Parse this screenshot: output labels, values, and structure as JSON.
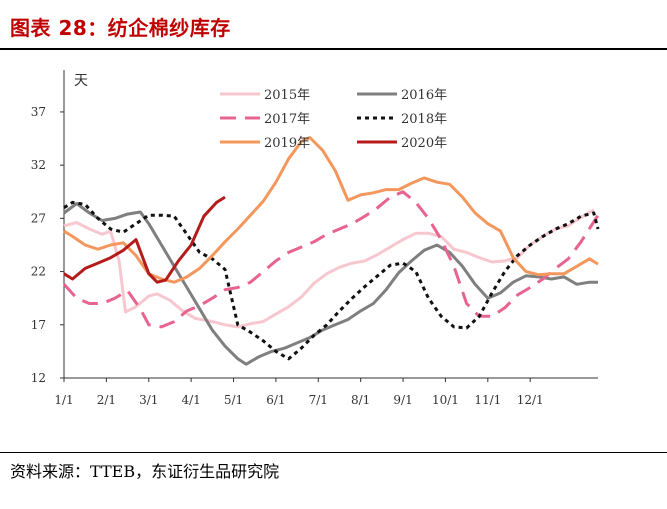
{
  "title": "图表 28：纺企棉纱库存",
  "source": "资料来源：TTEB，东证衍生品研究院",
  "chart_data": {
    "type": "line",
    "ylabel": "天",
    "ylim": [
      12,
      40
    ],
    "yticks": [
      12,
      17,
      22,
      27,
      32,
      37
    ],
    "xlim": [
      0,
      12.6
    ],
    "xtick_positions": [
      0,
      1,
      2,
      3,
      4,
      5,
      6,
      7,
      8,
      9,
      10,
      11
    ],
    "xtick_labels": [
      "1/1",
      "2/1",
      "3/1",
      "4/1",
      "5/1",
      "6/1",
      "7/1",
      "8/1",
      "9/1",
      "10/1",
      "11/1",
      "12/1"
    ],
    "legend_position": "top",
    "series": [
      {
        "name": "2015年",
        "color": "#f7c7cf",
        "dash": "solid",
        "points": [
          [
            0,
            26.3
          ],
          [
            0.3,
            26.6
          ],
          [
            0.6,
            26
          ],
          [
            0.9,
            25.5
          ],
          [
            1.1,
            25.8
          ],
          [
            1.3,
            23
          ],
          [
            1.45,
            18.2
          ],
          [
            1.7,
            18.7
          ],
          [
            2,
            19.7
          ],
          [
            2.2,
            19.9
          ],
          [
            2.5,
            19.3
          ],
          [
            2.8,
            18.3
          ],
          [
            3.1,
            17.6
          ],
          [
            3.5,
            17.3
          ],
          [
            3.8,
            17
          ],
          [
            4.1,
            16.8
          ],
          [
            4.4,
            17.1
          ],
          [
            4.7,
            17.3
          ],
          [
            5,
            18
          ],
          [
            5.3,
            18.7
          ],
          [
            5.6,
            19.6
          ],
          [
            5.9,
            20.9
          ],
          [
            6.2,
            21.8
          ],
          [
            6.5,
            22.4
          ],
          [
            6.8,
            22.8
          ],
          [
            7.1,
            23
          ],
          [
            7.4,
            23.6
          ],
          [
            7.7,
            24.3
          ],
          [
            8,
            25
          ],
          [
            8.3,
            25.6
          ],
          [
            8.6,
            25.6
          ],
          [
            8.9,
            25.3
          ],
          [
            9.2,
            24.1
          ],
          [
            9.5,
            23.8
          ],
          [
            9.8,
            23.3
          ],
          [
            10.1,
            22.9
          ],
          [
            10.4,
            23
          ],
          [
            10.7,
            23.3
          ],
          [
            11,
            24.5
          ],
          [
            11.3,
            25.3
          ],
          [
            11.6,
            26
          ],
          [
            11.9,
            26.3
          ],
          [
            12.2,
            27.1
          ],
          [
            12.5,
            27.8
          ]
        ]
      },
      {
        "name": "2016年",
        "color": "#7f7f7f",
        "dash": "solid",
        "points": [
          [
            0,
            27.5
          ],
          [
            0.3,
            28.4
          ],
          [
            0.6,
            27.5
          ],
          [
            0.9,
            26.8
          ],
          [
            1.2,
            27
          ],
          [
            1.5,
            27.4
          ],
          [
            1.8,
            27.6
          ],
          [
            2,
            26.5
          ],
          [
            2.3,
            24.5
          ],
          [
            2.6,
            22.5
          ],
          [
            2.9,
            20.5
          ],
          [
            3.2,
            18.5
          ],
          [
            3.5,
            16.5
          ],
          [
            3.8,
            15
          ],
          [
            4.1,
            13.8
          ],
          [
            4.3,
            13.3
          ],
          [
            4.6,
            14
          ],
          [
            4.9,
            14.5
          ],
          [
            5.2,
            14.8
          ],
          [
            5.5,
            15.3
          ],
          [
            5.8,
            15.8
          ],
          [
            6.1,
            16.5
          ],
          [
            6.4,
            17
          ],
          [
            6.7,
            17.5
          ],
          [
            7,
            18.3
          ],
          [
            7.3,
            19
          ],
          [
            7.6,
            20.3
          ],
          [
            7.9,
            21.9
          ],
          [
            8.2,
            23
          ],
          [
            8.5,
            24
          ],
          [
            8.8,
            24.5
          ],
          [
            9.1,
            23.8
          ],
          [
            9.4,
            22.5
          ],
          [
            9.7,
            20.8
          ],
          [
            10,
            19.5
          ],
          [
            10.3,
            20
          ],
          [
            10.6,
            21
          ],
          [
            10.9,
            21.6
          ],
          [
            11.2,
            21.5
          ],
          [
            11.5,
            21.3
          ],
          [
            11.8,
            21.5
          ],
          [
            12.1,
            20.8
          ],
          [
            12.4,
            21
          ],
          [
            12.6,
            21
          ]
        ]
      },
      {
        "name": "2017年",
        "color": "#e8638f",
        "dash": "long",
        "points": [
          [
            0,
            20.8
          ],
          [
            0.3,
            19.5
          ],
          [
            0.6,
            19
          ],
          [
            0.9,
            19
          ],
          [
            1.2,
            19.5
          ],
          [
            1.5,
            20.2
          ],
          [
            1.8,
            18.5
          ],
          [
            2,
            17
          ],
          [
            2.3,
            16.8
          ],
          [
            2.6,
            17.3
          ],
          [
            2.9,
            18.3
          ],
          [
            3.2,
            18.8
          ],
          [
            3.5,
            19.5
          ],
          [
            3.8,
            20.3
          ],
          [
            4.1,
            20.5
          ],
          [
            4.4,
            21
          ],
          [
            4.7,
            22
          ],
          [
            5,
            23
          ],
          [
            5.3,
            23.8
          ],
          [
            5.6,
            24.3
          ],
          [
            5.9,
            24.8
          ],
          [
            6.2,
            25.5
          ],
          [
            6.5,
            26
          ],
          [
            6.8,
            26.5
          ],
          [
            7.1,
            27.2
          ],
          [
            7.4,
            28
          ],
          [
            7.7,
            29
          ],
          [
            8,
            29.5
          ],
          [
            8.3,
            28.5
          ],
          [
            8.6,
            27
          ],
          [
            8.9,
            25
          ],
          [
            9.2,
            22.5
          ],
          [
            9.5,
            19
          ],
          [
            9.8,
            17.8
          ],
          [
            10.1,
            17.8
          ],
          [
            10.4,
            18.6
          ],
          [
            10.7,
            19.8
          ],
          [
            11,
            20.5
          ],
          [
            11.3,
            21.3
          ],
          [
            11.6,
            22.3
          ],
          [
            11.9,
            23.2
          ],
          [
            12.2,
            24.8
          ],
          [
            12.6,
            27.3
          ]
        ]
      },
      {
        "name": "2018年",
        "color": "#111111",
        "dash": "dot",
        "points": [
          [
            0,
            28
          ],
          [
            0.2,
            28.5
          ],
          [
            0.5,
            28.3
          ],
          [
            0.8,
            27
          ],
          [
            1.1,
            26
          ],
          [
            1.4,
            25.7
          ],
          [
            1.7,
            26.5
          ],
          [
            2,
            27.3
          ],
          [
            2.3,
            27.3
          ],
          [
            2.6,
            27.2
          ],
          [
            2.9,
            25.5
          ],
          [
            3.2,
            23.8
          ],
          [
            3.5,
            23.2
          ],
          [
            3.8,
            22.2
          ],
          [
            4.1,
            17
          ],
          [
            4.4,
            16.3
          ],
          [
            4.7,
            15.5
          ],
          [
            5,
            14.5
          ],
          [
            5.3,
            13.8
          ],
          [
            5.6,
            14.8
          ],
          [
            5.9,
            16
          ],
          [
            6.2,
            17
          ],
          [
            6.5,
            18.3
          ],
          [
            6.8,
            19.5
          ],
          [
            7.1,
            20.6
          ],
          [
            7.4,
            21.6
          ],
          [
            7.7,
            22.6
          ],
          [
            8,
            22.8
          ],
          [
            8.3,
            22
          ],
          [
            8.6,
            19.5
          ],
          [
            8.9,
            17.8
          ],
          [
            9.2,
            16.8
          ],
          [
            9.5,
            16.7
          ],
          [
            9.8,
            17.8
          ],
          [
            10.1,
            20
          ],
          [
            10.4,
            22
          ],
          [
            10.7,
            23.5
          ],
          [
            11,
            24.5
          ],
          [
            11.3,
            25.3
          ],
          [
            11.6,
            26
          ],
          [
            11.9,
            26.5
          ],
          [
            12.2,
            27.2
          ],
          [
            12.5,
            27.5
          ],
          [
            12.6,
            26
          ]
        ]
      },
      {
        "name": "2019年",
        "color": "#f4975d",
        "dash": "solid",
        "points": [
          [
            0,
            25.8
          ],
          [
            0.2,
            25.3
          ],
          [
            0.5,
            24.5
          ],
          [
            0.8,
            24.1
          ],
          [
            1.1,
            24.5
          ],
          [
            1.4,
            24.7
          ],
          [
            1.7,
            23.5
          ],
          [
            2,
            21.8
          ],
          [
            2.3,
            21.3
          ],
          [
            2.6,
            21
          ],
          [
            2.9,
            21.5
          ],
          [
            3.2,
            22.3
          ],
          [
            3.5,
            23.5
          ],
          [
            3.8,
            24.8
          ],
          [
            4.1,
            26
          ],
          [
            4.4,
            27.3
          ],
          [
            4.7,
            28.6
          ],
          [
            5,
            30.4
          ],
          [
            5.3,
            32.6
          ],
          [
            5.6,
            34.2
          ],
          [
            5.8,
            34.6
          ],
          [
            6.1,
            33.4
          ],
          [
            6.4,
            31.5
          ],
          [
            6.7,
            28.7
          ],
          [
            7,
            29.2
          ],
          [
            7.3,
            29.4
          ],
          [
            7.6,
            29.7
          ],
          [
            7.9,
            29.7
          ],
          [
            8.2,
            30.3
          ],
          [
            8.5,
            30.8
          ],
          [
            8.8,
            30.4
          ],
          [
            9.1,
            30.2
          ],
          [
            9.4,
            29
          ],
          [
            9.7,
            27.5
          ],
          [
            10,
            26.5
          ],
          [
            10.3,
            25.8
          ],
          [
            10.6,
            23.3
          ],
          [
            10.9,
            22
          ],
          [
            11.2,
            21.7
          ],
          [
            11.5,
            21.8
          ],
          [
            11.8,
            21.8
          ],
          [
            12.1,
            22.5
          ],
          [
            12.4,
            23.2
          ],
          [
            12.6,
            22.7
          ]
        ]
      },
      {
        "name": "2020年",
        "color": "#b41c1c",
        "dash": "solid",
        "points": [
          [
            0,
            21.8
          ],
          [
            0.2,
            21.3
          ],
          [
            0.5,
            22.3
          ],
          [
            0.8,
            22.8
          ],
          [
            1.1,
            23.3
          ],
          [
            1.4,
            24
          ],
          [
            1.7,
            25
          ],
          [
            2,
            21.8
          ],
          [
            2.2,
            21
          ],
          [
            2.4,
            21.2
          ],
          [
            2.7,
            23
          ],
          [
            3,
            24.5
          ],
          [
            3.3,
            27.2
          ],
          [
            3.6,
            28.5
          ],
          [
            3.8,
            29
          ]
        ]
      }
    ]
  }
}
